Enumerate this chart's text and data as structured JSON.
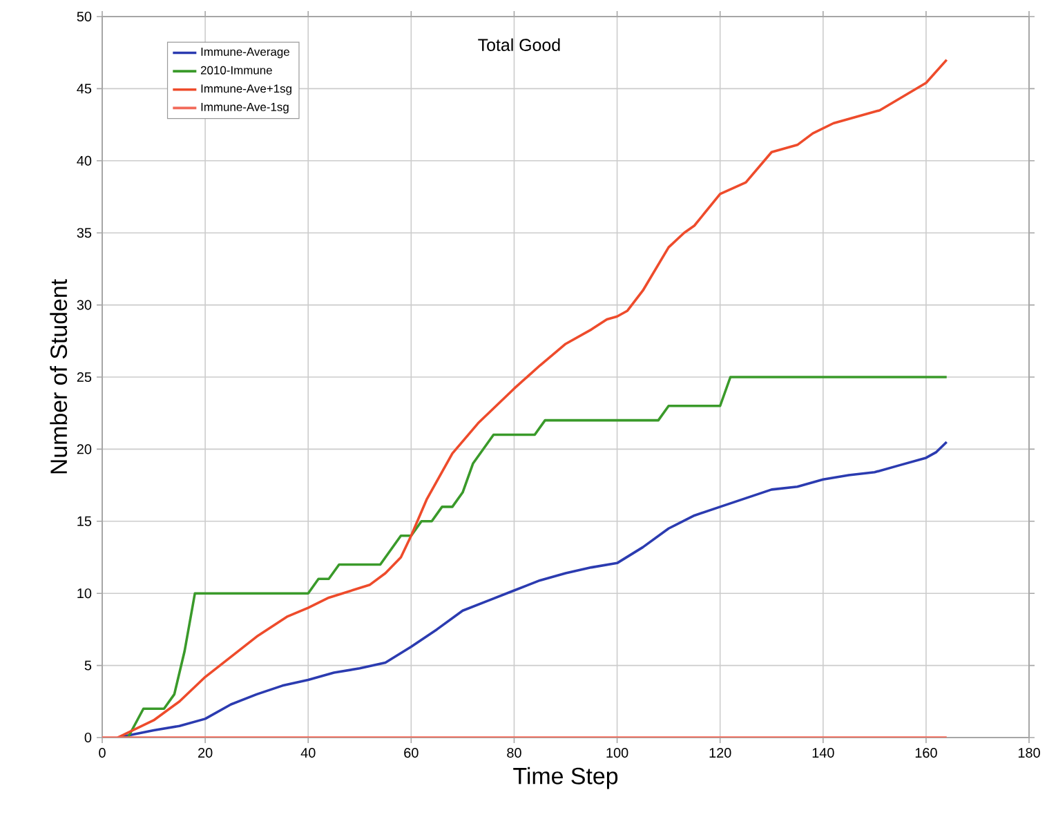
{
  "chart_data": {
    "type": "line",
    "title": "Total Good",
    "xlabel": "Time Step",
    "ylabel": "Number of Student",
    "xlim": [
      0,
      180
    ],
    "ylim": [
      0,
      50
    ],
    "xticks": [
      0,
      20,
      40,
      60,
      80,
      100,
      120,
      140,
      160,
      180
    ],
    "yticks": [
      0,
      5,
      10,
      15,
      20,
      25,
      30,
      35,
      40,
      45,
      50
    ],
    "grid": true,
    "legend": "top left",
    "marker": "none",
    "line_style": "solid",
    "series": [
      {
        "name": "Immune-Average",
        "color": "#2b3bb0",
        "x": [
          3,
          10,
          15,
          20,
          25,
          30,
          35,
          40,
          45,
          50,
          55,
          60,
          65,
          70,
          75,
          80,
          85,
          90,
          95,
          100,
          105,
          110,
          115,
          120,
          125,
          130,
          135,
          140,
          145,
          150,
          155,
          160,
          162,
          164
        ],
        "values": [
          0,
          0.5,
          0.8,
          1.3,
          2.3,
          3.0,
          3.6,
          4.0,
          4.5,
          4.8,
          5.2,
          6.3,
          7.5,
          8.8,
          9.5,
          10.2,
          10.9,
          11.4,
          11.8,
          12.1,
          13.2,
          14.5,
          15.4,
          16.0,
          16.6,
          17.2,
          17.4,
          17.9,
          18.2,
          18.4,
          18.9,
          19.4,
          19.8,
          20.5
        ]
      },
      {
        "name": "2010-Immune",
        "color": "#3a9a2a",
        "x": [
          3,
          5,
          8,
          12,
          14,
          16,
          18,
          40,
          42,
          44,
          46,
          54,
          58,
          60,
          62,
          64,
          66,
          68,
          70,
          72,
          76,
          84,
          86,
          108,
          110,
          120,
          122,
          164
        ],
        "values": [
          0,
          0,
          2,
          2,
          3,
          6,
          10,
          10,
          11,
          11,
          12,
          12,
          14,
          14,
          15,
          15,
          16,
          16,
          17,
          19,
          21,
          21,
          22,
          22,
          23,
          23,
          25,
          25
        ]
      },
      {
        "name": "Immune-Ave+1sg",
        "color": "#ee4b2b",
        "x": [
          3,
          10,
          15,
          20,
          25,
          30,
          36,
          40,
          44,
          52,
          55,
          58,
          60,
          63,
          68,
          73,
          80,
          85,
          90,
          95,
          98,
          100,
          102,
          105,
          110,
          113,
          115,
          120,
          125,
          130,
          135,
          138,
          142,
          151,
          160,
          164
        ],
        "values": [
          0,
          1.2,
          2.5,
          4.2,
          5.6,
          7.0,
          8.4,
          9.0,
          9.7,
          10.6,
          11.4,
          12.5,
          14.0,
          16.5,
          19.7,
          21.8,
          24.2,
          25.8,
          27.3,
          28.3,
          29.0,
          29.2,
          29.6,
          31.0,
          34.0,
          35.0,
          35.5,
          37.7,
          38.5,
          40.6,
          41.1,
          41.9,
          42.6,
          43.5,
          45.4,
          47.0
        ]
      },
      {
        "name": "Immune-Ave-1sg",
        "color": "#f26a5a",
        "x": [
          0,
          164
        ],
        "values": [
          0,
          0
        ]
      }
    ]
  }
}
